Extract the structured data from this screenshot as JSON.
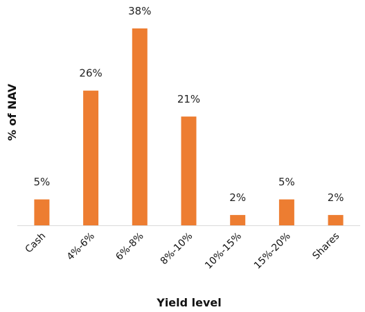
{
  "chart_data": {
    "type": "bar",
    "categories": [
      "Cash",
      "4%-6%",
      "6%-8%",
      "8%-10%",
      "10%-15%",
      "15%-20%",
      "Shares"
    ],
    "values": [
      5,
      26,
      38,
      21,
      2,
      5,
      2
    ],
    "data_labels": [
      "5%",
      "26%",
      "38%",
      "21%",
      "2%",
      "5%",
      "2%"
    ],
    "xlabel": "Yield level",
    "ylabel": "% of NAV",
    "ylim": [
      0,
      38
    ],
    "grid": false,
    "legend": "none",
    "bar_color": "#ED7D31"
  }
}
